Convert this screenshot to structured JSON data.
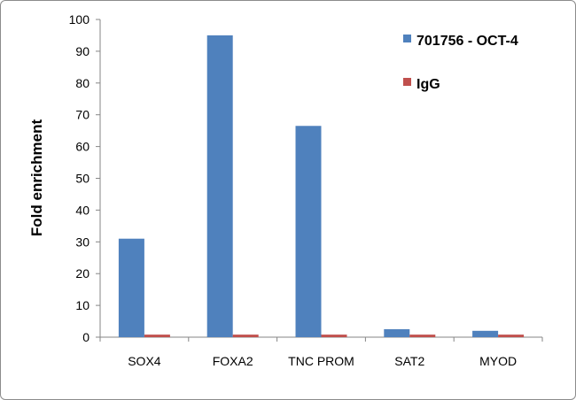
{
  "chart_data": {
    "type": "bar",
    "categories": [
      "SOX4",
      "FOXA2",
      "TNC PROM",
      "SAT2",
      "MYOD"
    ],
    "series": [
      {
        "name": "701756 - OCT-4",
        "color": "#4f81bd",
        "values": [
          31,
          95,
          66.5,
          2.5,
          2
        ]
      },
      {
        "name": "IgG",
        "color": "#c0504d",
        "values": [
          0.8,
          0.8,
          0.8,
          0.8,
          0.8
        ]
      }
    ],
    "ylabel": "Fold enrichment",
    "xlabel": "",
    "ylim": [
      0,
      100
    ],
    "yticks": [
      0,
      10,
      20,
      30,
      40,
      50,
      60,
      70,
      80,
      90,
      100
    ],
    "grid": false,
    "legend": "top-right"
  }
}
